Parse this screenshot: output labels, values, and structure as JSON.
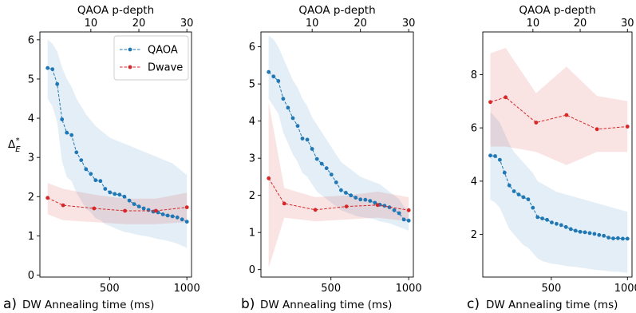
{
  "figure": {
    "colors": {
      "qaoa": "#1f77b4",
      "dwave": "#d62728"
    },
    "panels": [
      {
        "letter": "a)",
        "xlabel": "DW Annealing time (ms)",
        "top_xlabel": "QAOA p-depth",
        "ylabel": "Δ*_E"
      },
      {
        "letter": "b)",
        "xlabel": "DW Annealing time (ms)",
        "top_xlabel": "QAOA p-depth"
      },
      {
        "letter": "c)",
        "xlabel": "DW Annealing time (ms)",
        "top_xlabel": "QAOA p-depth"
      }
    ]
  },
  "chart_data": [
    {
      "type": "line",
      "xlabel": "DW Annealing time (ms)",
      "x2label": "QAOA p-depth",
      "ylabel": "Δ*_E",
      "xlim": [
        50,
        1030
      ],
      "ylim": [
        -0.05,
        6.2
      ],
      "x_ticks": [
        500,
        1000
      ],
      "x_ticklabels": [
        "500",
        "1000"
      ],
      "x2_ticks": [
        10,
        20,
        30
      ],
      "x2_ticklabels": [
        "10",
        "20",
        "30"
      ],
      "y_ticks": [
        0,
        1,
        2,
        3,
        4,
        5,
        6
      ],
      "y_ticklabels": [
        "0",
        "1",
        "2",
        "3",
        "4",
        "5",
        "6"
      ],
      "legend": {
        "placement": "top-right",
        "entries": [
          "QAOA",
          "Dwave"
        ]
      },
      "series": [
        {
          "name": "QAOA",
          "x": [
            100,
            131,
            162,
            193,
            224,
            255,
            286,
            317,
            348,
            379,
            410,
            441,
            472,
            503,
            534,
            565,
            596,
            628,
            659,
            690,
            721,
            752,
            783,
            814,
            845,
            876,
            907,
            938,
            969,
            1000
          ],
          "values": [
            5.28,
            5.25,
            4.87,
            3.97,
            3.63,
            3.57,
            3.13,
            2.93,
            2.7,
            2.58,
            2.42,
            2.4,
            2.2,
            2.11,
            2.07,
            2.05,
            2.0,
            1.9,
            1.81,
            1.75,
            1.7,
            1.66,
            1.62,
            1.6,
            1.55,
            1.52,
            1.5,
            1.47,
            1.42,
            1.36
          ],
          "upper": [
            6.0,
            5.9,
            5.7,
            5.3,
            5.0,
            4.8,
            4.5,
            4.3,
            4.1,
            3.95,
            3.8,
            3.7,
            3.6,
            3.5,
            3.45,
            3.4,
            3.35,
            3.3,
            3.25,
            3.2,
            3.15,
            3.1,
            3.05,
            3.0,
            2.95,
            2.9,
            2.85,
            2.75,
            2.65,
            2.55
          ],
          "lower": [
            4.5,
            4.3,
            3.9,
            2.9,
            2.5,
            2.4,
            2.1,
            1.9,
            1.7,
            1.6,
            1.45,
            1.4,
            1.3,
            1.25,
            1.2,
            1.15,
            1.1,
            1.08,
            1.05,
            1.02,
            1.0,
            0.98,
            0.95,
            0.92,
            0.9,
            0.87,
            0.84,
            0.8,
            0.75,
            0.7
          ]
        },
        {
          "name": "Dwave",
          "x": [
            100,
            200,
            400,
            600,
            800,
            1000
          ],
          "values": [
            1.97,
            1.78,
            1.7,
            1.64,
            1.64,
            1.73
          ],
          "upper": [
            2.35,
            2.2,
            2.05,
            1.95,
            1.95,
            2.1
          ],
          "lower": [
            1.55,
            1.4,
            1.35,
            1.3,
            1.3,
            1.35
          ]
        }
      ]
    },
    {
      "type": "line",
      "xlabel": "DW Annealing time (ms)",
      "x2label": "QAOA p-depth",
      "xlim": [
        50,
        1030
      ],
      "ylim": [
        -0.2,
        6.4
      ],
      "x_ticks": [
        500,
        1000
      ],
      "x_ticklabels": [
        "500",
        "1000"
      ],
      "x2_ticks": [
        10,
        20,
        30
      ],
      "x2_ticklabels": [
        "10",
        "20",
        "30"
      ],
      "y_ticks": [
        0,
        1,
        2,
        3,
        4,
        5,
        6
      ],
      "y_ticklabels": [
        "0",
        "1",
        "2",
        "3",
        "4",
        "5",
        "6"
      ],
      "series": [
        {
          "name": "QAOA",
          "x": [
            100,
            131,
            162,
            193,
            224,
            255,
            286,
            317,
            348,
            379,
            410,
            441,
            472,
            503,
            534,
            565,
            596,
            628,
            659,
            690,
            721,
            752,
            783,
            814,
            845,
            876,
            907,
            938,
            969,
            1000
          ],
          "values": [
            5.32,
            5.2,
            5.08,
            4.6,
            4.36,
            4.08,
            3.87,
            3.53,
            3.5,
            3.25,
            2.98,
            2.85,
            2.73,
            2.56,
            2.35,
            2.14,
            2.07,
            2.0,
            1.94,
            1.89,
            1.88,
            1.85,
            1.8,
            1.75,
            1.72,
            1.68,
            1.6,
            1.52,
            1.35,
            1.32
          ],
          "upper": [
            6.3,
            6.2,
            6.0,
            5.7,
            5.4,
            5.1,
            4.9,
            4.6,
            4.4,
            4.1,
            3.9,
            3.7,
            3.5,
            3.3,
            3.1,
            2.9,
            2.8,
            2.7,
            2.6,
            2.5,
            2.45,
            2.4,
            2.35,
            2.3,
            2.2,
            2.1,
            2.0,
            1.9,
            1.7,
            1.6
          ],
          "lower": [
            4.6,
            4.4,
            4.2,
            3.7,
            3.4,
            3.1,
            2.9,
            2.6,
            2.5,
            2.3,
            2.1,
            2.0,
            1.9,
            1.8,
            1.7,
            1.6,
            1.55,
            1.5,
            1.45,
            1.42,
            1.4,
            1.38,
            1.35,
            1.3,
            1.28,
            1.25,
            1.2,
            1.15,
            1.1,
            1.05
          ]
        },
        {
          "name": "Dwave",
          "x": [
            100,
            200,
            400,
            600,
            800,
            1000
          ],
          "values": [
            2.46,
            1.78,
            1.61,
            1.7,
            1.74,
            1.6
          ],
          "upper": [
            4.5,
            2.2,
            1.95,
            2.0,
            2.1,
            1.95
          ],
          "lower": [
            0.05,
            1.4,
            1.3,
            1.35,
            1.4,
            1.3
          ]
        }
      ]
    },
    {
      "type": "line",
      "xlabel": "DW Annealing time (ms)",
      "x2label": "QAOA p-depth",
      "xlim": [
        50,
        1030
      ],
      "ylim": [
        0.4,
        9.6
      ],
      "x_ticks": [
        500,
        1000
      ],
      "x_ticklabels": [
        "500",
        "1000"
      ],
      "x2_ticks": [
        10,
        20,
        30
      ],
      "x2_ticklabels": [
        "10",
        "20",
        "30"
      ],
      "y_ticks": [
        2,
        4,
        6,
        8
      ],
      "y_ticklabels": [
        "2",
        "4",
        "6",
        "8"
      ],
      "series": [
        {
          "name": "QAOA",
          "x": [
            100,
            131,
            162,
            193,
            224,
            255,
            286,
            317,
            348,
            379,
            410,
            441,
            472,
            503,
            534,
            565,
            596,
            628,
            659,
            690,
            721,
            752,
            783,
            814,
            845,
            876,
            907,
            938,
            969,
            1000
          ],
          "values": [
            4.96,
            4.94,
            4.8,
            4.32,
            3.84,
            3.62,
            3.5,
            3.4,
            3.32,
            3.0,
            2.65,
            2.6,
            2.55,
            2.45,
            2.4,
            2.35,
            2.28,
            2.2,
            2.14,
            2.1,
            2.08,
            2.05,
            2.02,
            1.98,
            1.95,
            1.88,
            1.85,
            1.86,
            1.84,
            1.84
          ],
          "upper": [
            6.6,
            6.4,
            6.2,
            5.8,
            5.4,
            5.1,
            4.9,
            4.7,
            4.5,
            4.3,
            4.0,
            3.9,
            3.8,
            3.7,
            3.6,
            3.55,
            3.5,
            3.45,
            3.4,
            3.35,
            3.3,
            3.25,
            3.2,
            3.15,
            3.1,
            3.05,
            3.0,
            2.95,
            2.9,
            2.85
          ],
          "lower": [
            3.3,
            3.2,
            3.0,
            2.6,
            2.2,
            2.0,
            1.8,
            1.6,
            1.5,
            1.3,
            1.1,
            1.0,
            0.95,
            0.9,
            0.88,
            0.85,
            0.82,
            0.8,
            0.78,
            0.75,
            0.73,
            0.7,
            0.68,
            0.66,
            0.64,
            0.62,
            0.6,
            0.6,
            0.58,
            0.56
          ]
        },
        {
          "name": "Dwave",
          "x": [
            100,
            200,
            400,
            600,
            800,
            1000
          ],
          "values": [
            6.97,
            7.15,
            6.2,
            6.48,
            5.95,
            6.05
          ],
          "upper": [
            8.8,
            9.0,
            7.3,
            8.3,
            7.2,
            7.0
          ],
          "lower": [
            5.3,
            5.3,
            5.1,
            4.6,
            5.1,
            5.1
          ]
        }
      ]
    }
  ]
}
